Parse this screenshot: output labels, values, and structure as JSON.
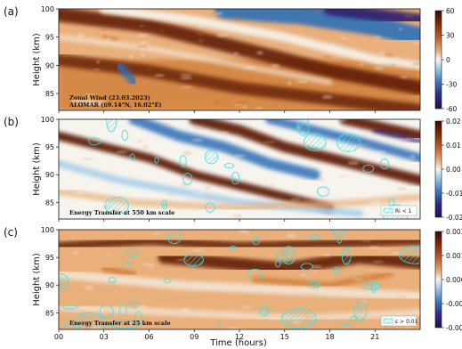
{
  "figure": {
    "xlabel": "Time (hours)"
  },
  "colors": {
    "dark_blue": "#2a1a6e",
    "blue": "#2f6fb8",
    "light_blue": "#a9cfe8",
    "white": "#f7f4ee",
    "light_orange": "#e9b07c",
    "orange": "#c66a1f",
    "dark_brown": "#5a1805",
    "contour": "#3fe0e6"
  },
  "chart_data": [
    {
      "type": "heatmap",
      "panel_label": "(a)",
      "ylabel": "Height (km)",
      "x": [
        0,
        24
      ],
      "xticks": [
        "00",
        "03",
        "06",
        "09",
        "12",
        "15",
        "18",
        "21"
      ],
      "ylim": [
        82,
        100
      ],
      "yticks": [
        85,
        90,
        95,
        100
      ],
      "annotation_line1": "Zonal Wind (23.03.2023)",
      "annotation_line2": "ALOMAR (69.14°N, 16.02°E)",
      "colorbar": {
        "ticks": [
          "60",
          "30",
          "0",
          "-30",
          "-60"
        ],
        "min": -60,
        "max": 60
      },
      "legend_text": "",
      "pattern": "wind"
    },
    {
      "type": "heatmap",
      "panel_label": "(b)",
      "ylabel": "Height (km)",
      "x": [
        0,
        24
      ],
      "xticks": [
        "00",
        "03",
        "06",
        "09",
        "12",
        "15",
        "18",
        "21"
      ],
      "ylim": [
        82,
        100
      ],
      "yticks": [
        85,
        90,
        95,
        100
      ],
      "annotation_line1": "Energy Transfer at 550 km scale",
      "annotation_line2": "",
      "colorbar": {
        "ticks": [
          "0.02",
          "0.01",
          "0.00",
          "-0.01",
          "-0.02"
        ],
        "min": -0.02,
        "max": 0.02
      },
      "legend_text": "Ri < 1",
      "pattern": "waves"
    },
    {
      "type": "heatmap",
      "panel_label": "(c)",
      "ylabel": "Height (km)",
      "x": [
        0,
        24
      ],
      "xticks": [
        "00",
        "03",
        "06",
        "09",
        "12",
        "15",
        "18",
        "21"
      ],
      "ylim": [
        82,
        100
      ],
      "yticks": [
        85,
        90,
        95,
        100
      ],
      "annotation_line1": "Energy Transfer at 25 km scale",
      "annotation_line2": "",
      "colorbar": {
        "ticks": [
          "0.002",
          "0.001",
          "0.000",
          "-0.001",
          "-0.002"
        ],
        "min": -0.002,
        "max": 0.002
      },
      "legend_text": "ε > 0.01",
      "pattern": "patchy"
    }
  ]
}
